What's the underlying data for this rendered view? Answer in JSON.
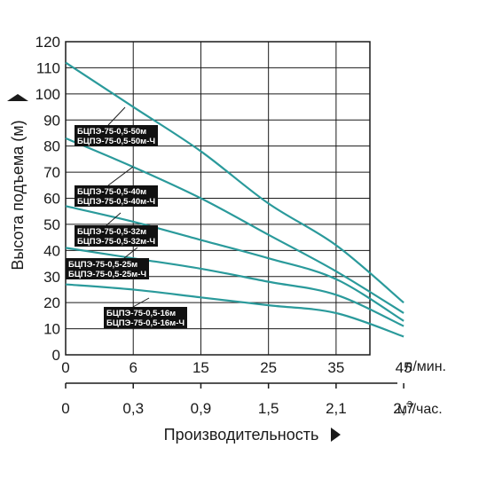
{
  "chart_data": {
    "type": "line",
    "ylabel": "Высота подъема (м)",
    "xlabel": "Производительность",
    "ylim": [
      0,
      120
    ],
    "xlim": [
      0,
      45
    ],
    "grid": true,
    "y_ticks": [
      "0",
      "10",
      "20",
      "30",
      "40",
      "50",
      "60",
      "70",
      "80",
      "90",
      "100",
      "110",
      "120"
    ],
    "x_ticks_primary": [
      "0",
      "6",
      "15",
      "25",
      "35",
      "45"
    ],
    "x_ticks_primary_values": [
      0,
      10,
      20,
      30,
      40,
      50
    ],
    "x_unit_primary": "л/мин.",
    "x_ticks_secondary": [
      "0",
      "0,3",
      "0,9",
      "1,5",
      "2,1",
      "2,7"
    ],
    "x_unit_secondary_base": "м",
    "x_unit_secondary_sup": "3",
    "x_unit_secondary_suffix": "/час.",
    "line_color": "#2a9a9b",
    "series": [
      {
        "labels": [
          "БЦПЭ-75-0,5-50м",
          "БЦПЭ-75-0,5-50м-Ч"
        ],
        "x": [
          0,
          10,
          20,
          30,
          40,
          50
        ],
        "y": [
          112,
          95,
          78,
          58,
          42,
          20
        ]
      },
      {
        "labels": [
          "БЦПЭ-75-0,5-40м",
          "БЦПЭ-75-0,5-40м-Ч"
        ],
        "x": [
          0,
          10,
          20,
          30,
          40,
          50
        ],
        "y": [
          83,
          72,
          60,
          46,
          32,
          16
        ]
      },
      {
        "labels": [
          "БЦПЭ-75-0,5-32м",
          "БЦПЭ-75-0,5-32м-Ч"
        ],
        "x": [
          0,
          10,
          20,
          30,
          40,
          50
        ],
        "y": [
          57,
          51,
          44,
          37,
          29,
          13
        ]
      },
      {
        "labels": [
          "БЦПЭ-75-0,5-25м",
          "БЦПЭ-75-0,5-25м-Ч"
        ],
        "x": [
          0,
          10,
          20,
          30,
          40,
          50
        ],
        "y": [
          41,
          37,
          33,
          28,
          23,
          11
        ]
      },
      {
        "labels": [
          "БЦПЭ-75-0,5-16м",
          "БЦПЭ-75-0,5-16м-Ч"
        ],
        "x": [
          0,
          10,
          20,
          30,
          40,
          50
        ],
        "y": [
          27,
          25,
          22,
          19,
          16,
          7
        ]
      }
    ]
  }
}
